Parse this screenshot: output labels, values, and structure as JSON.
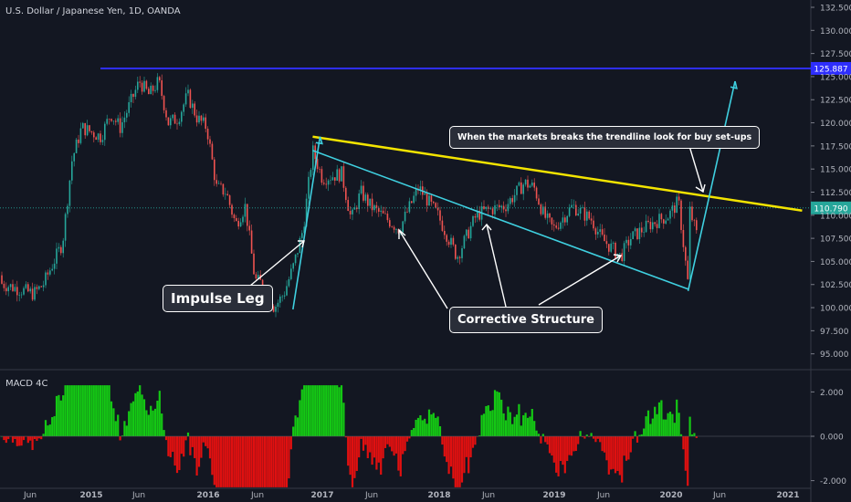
{
  "symbol_title": "U.S. Dollar / Japanese Yen, 1D, OANDA",
  "macd_title": "MACD 4C",
  "colors": {
    "background": "#131722",
    "up": "#26a69a",
    "down": "#ef5350",
    "resistance": "#2e2efc",
    "trendline": "#f3e400",
    "channel": "#3fd0e0",
    "macd_up": "#14c814",
    "macd_down": "#e01010"
  },
  "chart_data": [
    {
      "type": "candlestick",
      "ylim": [
        93.0,
        133.5
      ],
      "y_ticks": [
        "132.500",
        "130.000",
        "127.500",
        "125.000",
        "122.500",
        "120.000",
        "117.500",
        "115.000",
        "112.500",
        "110.000",
        "107.500",
        "105.000",
        "102.500",
        "100.000",
        "97.500",
        "95.000"
      ],
      "x_ticks": [
        "Jun",
        "2015",
        "Jun",
        "2016",
        "Jun",
        "2017",
        "Jun",
        "2018",
        "Jun",
        "2019",
        "Jun",
        "2020",
        "Jun",
        "2021"
      ],
      "price_path": [
        [
          "2014-01",
          103.5
        ],
        [
          "2014-04",
          102.5
        ],
        [
          "2014-07",
          101.5
        ],
        [
          "2014-08",
          102.5
        ],
        [
          "2014-10",
          107.0
        ],
        [
          "2014-11",
          116.0
        ],
        [
          "2014-12",
          119.5
        ],
        [
          "2015-02",
          118.5
        ],
        [
          "2015-03",
          121.0
        ],
        [
          "2015-04",
          119.5
        ],
        [
          "2015-06",
          124.5
        ],
        [
          "2015-07",
          123.0
        ],
        [
          "2015-08",
          124.5
        ],
        [
          "2015-09",
          120.0
        ],
        [
          "2015-10",
          120.5
        ],
        [
          "2015-11",
          123.0
        ],
        [
          "2015-12",
          120.5
        ],
        [
          "2016-01",
          119.5
        ],
        [
          "2016-02",
          113.0
        ],
        [
          "2016-03",
          112.5
        ],
        [
          "2016-04",
          109.0
        ],
        [
          "2016-05",
          111.0
        ],
        [
          "2016-06",
          103.0
        ],
        [
          "2016-07",
          102.5
        ],
        [
          "2016-08",
          100.0
        ],
        [
          "2016-09",
          101.5
        ],
        [
          "2016-10",
          104.5
        ],
        [
          "2016-11",
          108.5
        ],
        [
          "2016-12",
          117.0
        ],
        [
          "2017-01",
          114.0
        ],
        [
          "2017-03",
          114.5
        ],
        [
          "2017-04",
          109.5
        ],
        [
          "2017-05",
          112.5
        ],
        [
          "2017-06",
          111.0
        ],
        [
          "2017-09",
          108.5
        ],
        [
          "2017-11",
          113.0
        ],
        [
          "2018-01",
          110.0
        ],
        [
          "2018-03",
          105.5
        ],
        [
          "2018-05",
          110.0
        ],
        [
          "2018-06",
          110.5
        ],
        [
          "2018-08",
          111.0
        ],
        [
          "2018-10",
          113.5
        ],
        [
          "2018-11",
          113.0
        ],
        [
          "2018-12",
          110.0
        ],
        [
          "2019-01",
          108.5
        ],
        [
          "2019-03",
          111.0
        ],
        [
          "2019-05",
          109.5
        ],
        [
          "2019-06",
          107.5
        ],
        [
          "2019-08",
          105.5
        ],
        [
          "2019-09",
          107.5
        ],
        [
          "2019-11",
          109.0
        ],
        [
          "2019-12",
          109.5
        ],
        [
          "2020-01",
          110.0
        ],
        [
          "2020-02",
          111.5
        ],
        [
          "2020-03",
          102.5
        ],
        [
          "2020-03",
          110.5
        ],
        [
          "2020-04",
          107.5
        ]
      ],
      "resistance": {
        "value": 125.887,
        "label": "125.887"
      },
      "current_price": {
        "value": 110.79,
        "label": "110.790"
      },
      "trendline": {
        "start": [
          "2016-12",
          118.5
        ],
        "end": [
          "2020-12",
          110.5
        ]
      },
      "channel": {
        "start": [
          "2016-12",
          117.0
        ],
        "end": [
          "2020-03",
          102.0
        ]
      },
      "impulse_arrow": {
        "start": [
          "2016-09",
          100.0
        ],
        "end": [
          "2016-12",
          118.5
        ]
      },
      "target_arrow": {
        "start": [
          "2020-03",
          102.0
        ],
        "end": [
          "2020-06",
          124.5
        ]
      }
    },
    {
      "type": "histogram",
      "ylim": [
        -2.2,
        2.7
      ],
      "y_ticks": [
        "2.000",
        "0.000",
        "-2.000"
      ]
    }
  ],
  "annotations": {
    "impulse": "Impulse Leg",
    "corrective": "Corrective Structure",
    "breakout_note": "When the markets breaks the trendline look for buy set-ups"
  }
}
